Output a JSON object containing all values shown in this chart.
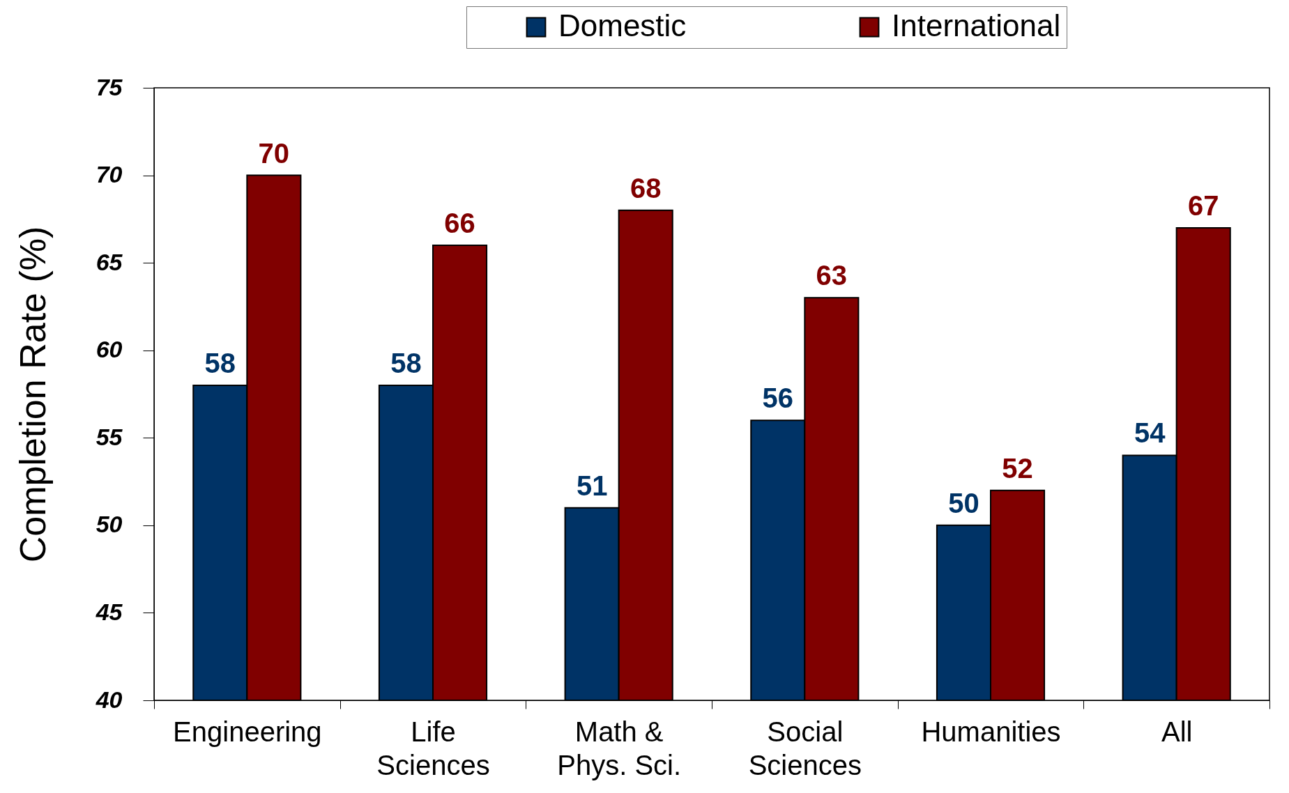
{
  "chart_data": {
    "type": "bar",
    "ylabel": "Completion Rate (%)",
    "categories": [
      "Engineering",
      "Life\nSciences",
      "Math &\nPhys. Sci.",
      "Social\nSciences",
      "Humanities",
      "All"
    ],
    "series": [
      {
        "name": "Domestic",
        "color": "#003366",
        "values": [
          58,
          58,
          51,
          56,
          50,
          54
        ]
      },
      {
        "name": "International",
        "color": "#800000",
        "values": [
          70,
          66,
          68,
          63,
          52,
          67
        ]
      }
    ],
    "ylim": [
      40,
      75
    ],
    "yticks": [
      40,
      45,
      50,
      55,
      60,
      65,
      70,
      75
    ],
    "data_labels": true,
    "legend": "top",
    "grid": false
  }
}
